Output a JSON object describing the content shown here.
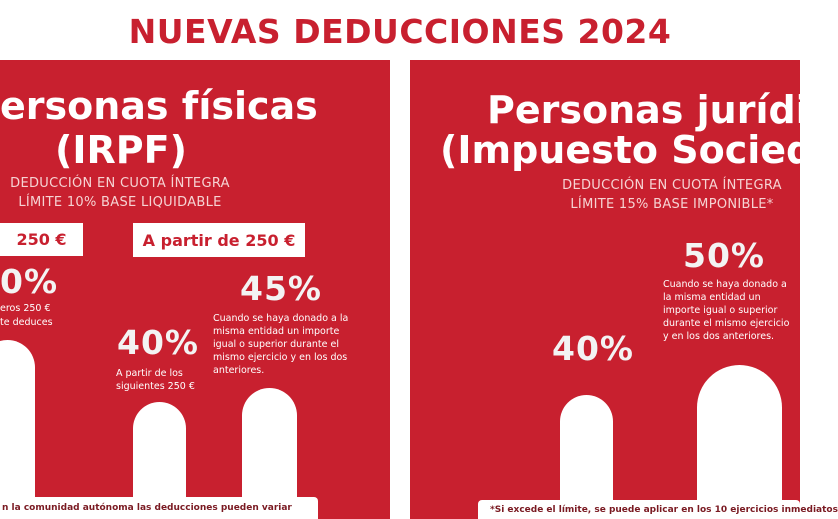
{
  "header": {
    "title": "NUEVAS DEDUCCIONES 2024"
  },
  "left": {
    "title_line1": "ersonas físicas",
    "title_line2": "(IRPF)",
    "subtitle_line1": "DEDUCCIÓN EN CUOTA ÍNTEGRA",
    "subtitle_line2": "LÍMITE 10% BASE LIQUIDABLE",
    "tabs": [
      "250 €",
      "A partir de 250 €"
    ],
    "tiers": [
      {
        "rate": "0%",
        "note_line1": "eros 250 €",
        "note_line2": "te deduces"
      },
      {
        "rate": "40%",
        "note": "A partir de los siguientes 250 €"
      },
      {
        "rate": "45%",
        "note": "Cuando se haya donado a la misma entidad un importe igual o superior durante el mismo ejercicio y en los dos anteriores."
      }
    ],
    "footnote": "n la comunidad autónoma las deducciones pueden variar"
  },
  "right": {
    "title_line1": "Personas jurídic",
    "title_line2": "(Impuesto Socied",
    "subtitle_line1": "DEDUCCIÓN EN CUOTA ÍNTEGRA",
    "subtitle_line2": "LÍMITE 15% BASE IMPONIBLE*",
    "tiers": [
      {
        "rate": "40%"
      },
      {
        "rate": "50%",
        "note": "Cuando se haya donado a la misma entidad un importe igual o superior durante el mismo ejercicio y en los dos anteriores."
      }
    ],
    "footnote": "*Si excede el límite, se puede aplicar en los 10 ejercicios inmediatos"
  }
}
